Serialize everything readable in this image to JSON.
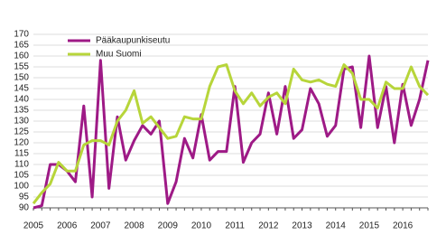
{
  "chart_data": {
    "type": "line",
    "categories": [
      "2005",
      null,
      null,
      null,
      "2006",
      null,
      null,
      null,
      "2007",
      null,
      null,
      null,
      "2008",
      null,
      null,
      null,
      "2009",
      null,
      null,
      null,
      "2010",
      null,
      null,
      null,
      "2011",
      null,
      null,
      null,
      "2012",
      null,
      null,
      null,
      "2013",
      null,
      null,
      null,
      "2014",
      null,
      null,
      null,
      "2015",
      null,
      null,
      null,
      "2016",
      null,
      null,
      null
    ],
    "series": [
      {
        "name": "Pääkaupunkiseutu",
        "color": "#9e1a86",
        "values": [
          90,
          91,
          110,
          110,
          107,
          102,
          137,
          95,
          158,
          99,
          132,
          112,
          121,
          128,
          124,
          130,
          92,
          102,
          122,
          113,
          133,
          112,
          116,
          116,
          146,
          111,
          120,
          124,
          143,
          124,
          146,
          122,
          126,
          145,
          138,
          123,
          128,
          154,
          155,
          127,
          160,
          127,
          146,
          120,
          147,
          128,
          140,
          158
        ]
      },
      {
        "name": "Muu Suomi",
        "color": "#b7d53a",
        "values": [
          92,
          97,
          101,
          111,
          107,
          107,
          119,
          121,
          121,
          119,
          130,
          135,
          144,
          129,
          132,
          127,
          122,
          123,
          132,
          131,
          131,
          146,
          155,
          156,
          144,
          138,
          143,
          137,
          141,
          143,
          138,
          154,
          149,
          148,
          149,
          147,
          146,
          156,
          152,
          140,
          140,
          136,
          148,
          145,
          145,
          155,
          146,
          142
        ]
      }
    ],
    "ylim": [
      90,
      170
    ],
    "yticks": [
      90,
      95,
      100,
      105,
      110,
      115,
      120,
      125,
      130,
      135,
      140,
      145,
      150,
      155,
      160,
      165,
      170
    ],
    "grid": true,
    "legend": "top-left"
  }
}
